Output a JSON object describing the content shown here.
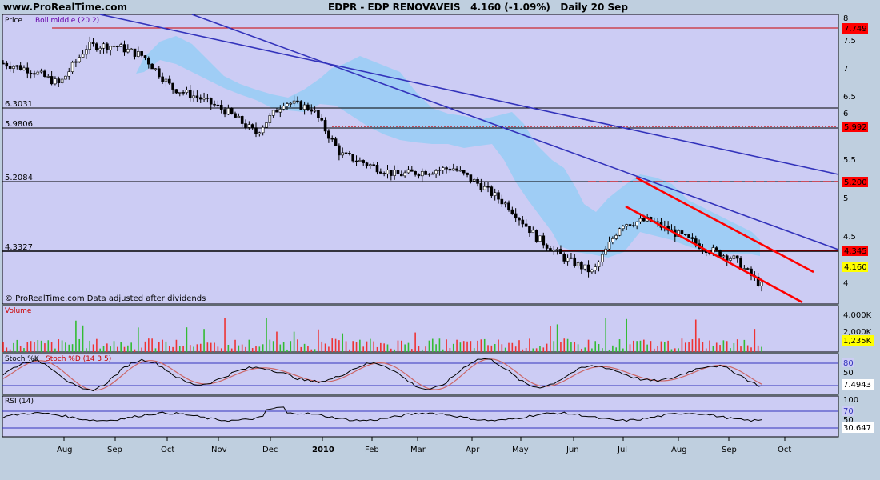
{
  "header": {
    "site": "www.ProRealTime.com",
    "symbol": "EDPR - EDP RENOVAVEIS",
    "quote": "4.160 (-1.09%)",
    "period": "Daily 20 Sep"
  },
  "price_panel": {
    "legend_price": "Price",
    "legend_boll": "Boll middle (20 2)",
    "footer_note": "© ProRealTime.com  Data adjusted after dividends",
    "hline_labels": [
      "6.3031",
      "5.9806",
      "5.2084",
      "4.3327"
    ],
    "right_badges": [
      "7.749",
      "5.992",
      "5.200",
      "4.345",
      "4.160"
    ],
    "axis_ticks": [
      "8",
      "7.5",
      "7",
      "6.5",
      "6",
      "5.5",
      "5",
      "4.5",
      "4"
    ]
  },
  "volume_panel": {
    "legend": "Volume",
    "axis_ticks": [
      "4,000K",
      "2,000K"
    ],
    "badge": "1,235K"
  },
  "stoch_panel": {
    "legend_k": "Stoch %K",
    "legend_d": "Stoch %D (14 3 5)",
    "axis_ticks": [
      "80",
      "50",
      "20"
    ],
    "badge": "7.4943"
  },
  "rsi_panel": {
    "legend": "RSI (14)",
    "axis_ticks": [
      "100",
      "70",
      "50"
    ],
    "badge": "30.647"
  },
  "x_axis": [
    "Aug",
    "Sep",
    "Oct",
    "Nov",
    "Dec",
    "2010",
    "Feb",
    "Mar",
    "Apr",
    "May",
    "Jun",
    "Jul",
    "Aug",
    "Sep",
    "Oct"
  ],
  "colors": {
    "panel_bg": "#ccccf4",
    "band": "#9fcdf5",
    "candle": "#000000",
    "red": "#ff0000",
    "blue": "#3333bb",
    "badge_red": "#ff0000",
    "badge_yellow": "#ffff00"
  },
  "chart_data": {
    "type": "line",
    "title": "EDPR - EDP RENOVAVEIS",
    "series": [
      {
        "name": "Price",
        "x": [
          "Jul",
          "Aug",
          "Sep",
          "Sep",
          "Oct",
          "Oct",
          "Nov",
          "Nov",
          "Dec",
          "Dec",
          "2010",
          "Jan",
          "Feb",
          "Feb",
          "Mar",
          "Mar",
          "Apr",
          "Apr",
          "May",
          "May",
          "Jun",
          "Jun",
          "Jul",
          "Jul",
          "Aug",
          "Aug",
          "Sep",
          "Sep"
        ],
        "values": [
          7.35,
          7.25,
          7.05,
          7.6,
          7.6,
          7.45,
          7.0,
          6.85,
          6.65,
          6.35,
          6.8,
          6.7,
          6.05,
          5.9,
          5.75,
          5.8,
          5.85,
          5.6,
          5.3,
          4.85,
          4.55,
          4.35,
          5.05,
          5.1,
          4.9,
          4.7,
          4.55,
          4.16
        ]
      }
    ],
    "ylim": [
      3.9,
      8.05
    ],
    "reference_levels": [
      7.749,
      6.3031,
      5.992,
      5.9806,
      5.2084,
      5.2,
      4.3327,
      4.345
    ]
  }
}
